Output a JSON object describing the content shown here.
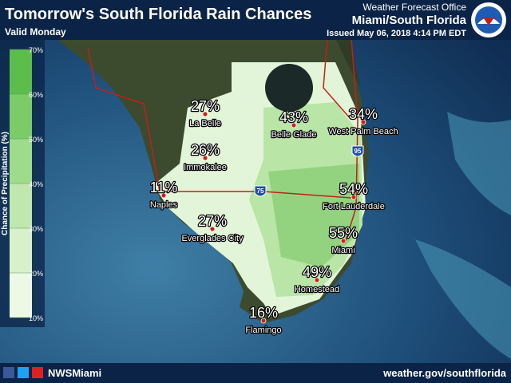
{
  "header": {
    "title": "Tomorrow's South Florida Rain Chances",
    "valid": "Valid Monday",
    "office": "Weather Forecast Office",
    "location": "Miami/South Florida",
    "issued": "Issued May 06, 2018 4:14 PM EDT"
  },
  "legend": {
    "label": "Chance of Precipitation (%)",
    "ticks": [
      "70%",
      "60%",
      "50%",
      "40%",
      "30%",
      "20%",
      "10%"
    ]
  },
  "cities": [
    {
      "name": "La Belle",
      "chance": "27%"
    },
    {
      "name": "Belle Glade",
      "chance": "43%"
    },
    {
      "name": "West Palm Beach",
      "chance": "34%"
    },
    {
      "name": "Immokalee",
      "chance": "26%"
    },
    {
      "name": "Naples",
      "chance": "11%"
    },
    {
      "name": "Fort Lauderdale",
      "chance": "54%"
    },
    {
      "name": "Everglades City",
      "chance": "27%"
    },
    {
      "name": "Miami",
      "chance": "55%"
    },
    {
      "name": "Homestead",
      "chance": "49%"
    },
    {
      "name": "Flamingo",
      "chance": "16%"
    }
  ],
  "shields": [
    "95",
    "75"
  ],
  "footer": {
    "handle": "NWSMiami",
    "website": "weather.gov/southflorida"
  }
}
